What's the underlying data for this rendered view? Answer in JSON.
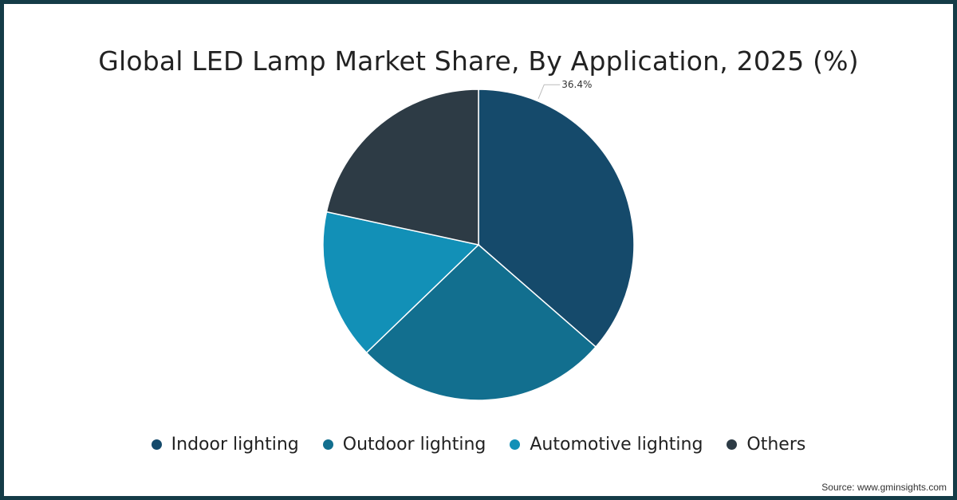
{
  "chart_data": {
    "type": "pie",
    "title": "Global LED Lamp Market Share, By Application, 2025 (%)",
    "categories": [
      "Indoor lighting",
      "Outdoor lighting",
      "Automotive lighting",
      "Others"
    ],
    "values": [
      36.4,
      26.4,
      15.6,
      21.6
    ],
    "data_labels": [
      "36.4%",
      null,
      null,
      null
    ],
    "colors": [
      "#154a6b",
      "#126f8f",
      "#1290b7",
      "#2d3b45"
    ],
    "legend_position": "bottom",
    "start_angle_deg": 0,
    "direction": "clockwise"
  },
  "source": "Source: www.gminsights.com"
}
